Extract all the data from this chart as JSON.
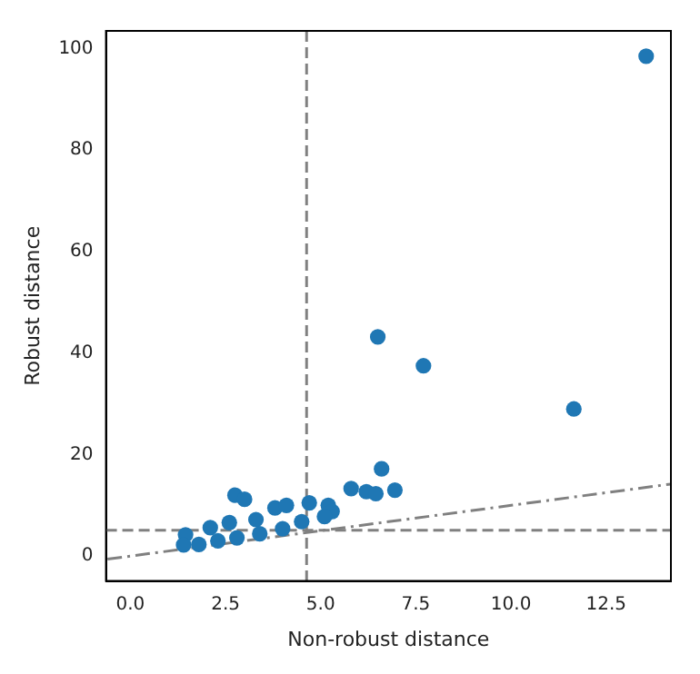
{
  "chart_data": {
    "type": "scatter",
    "xlabel": "Non-robust distance",
    "ylabel": "Robust distance",
    "xlim": [
      -0.64,
      14.2
    ],
    "ylim": [
      -4.9,
      103.5
    ],
    "xticks": [
      {
        "value": 0,
        "label": "0.0"
      },
      {
        "value": 2.5,
        "label": "2.5"
      },
      {
        "value": 5,
        "label": "5.0"
      },
      {
        "value": 7.5,
        "label": "7.5"
      },
      {
        "value": 10,
        "label": "10.0"
      },
      {
        "value": 12.5,
        "label": "12.5"
      }
    ],
    "yticks": [
      0,
      20,
      40,
      60,
      80,
      100
    ],
    "grid": false,
    "legend": false,
    "marker": "circle",
    "ref_lines": [
      {
        "axis": "x",
        "value": 4.63,
        "color": "#808080",
        "line_style": "dashed"
      },
      {
        "axis": "y",
        "value": 5.1,
        "color": "#808080",
        "line_style": "dashed"
      }
    ],
    "series": [
      {
        "color": "#1f77b4",
        "x": [
          13.55,
          6.5,
          7.7,
          11.65,
          6.6,
          5.8,
          6.2,
          6.45,
          6.95,
          2.75,
          3.0,
          1.45,
          2.1,
          2.6,
          3.3,
          3.8,
          4.1,
          4.7,
          5.2,
          5.3,
          1.4,
          1.8,
          2.3,
          2.8,
          3.4,
          4.0,
          4.5,
          5.1
        ],
        "values": [
          98.5,
          43.2,
          37.5,
          29,
          17.2,
          13.3,
          12.7,
          12.3,
          13,
          12,
          11.2,
          4.2,
          5.6,
          6.6,
          7.2,
          9.5,
          10,
          10.5,
          10,
          8.8,
          2.2,
          2.3,
          3.0,
          3.6,
          4.4,
          5.4,
          6.8,
          7.8
        ]
      },
      {
        "type": "line",
        "color": "#808080",
        "line_style": "dashed",
        "marker": "none",
        "x": [
          -0.6,
          14.2
        ],
        "values": [
          -0.6,
          14.2
        ]
      }
    ]
  }
}
